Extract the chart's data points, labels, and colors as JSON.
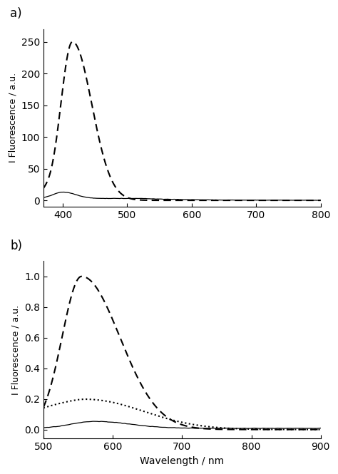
{
  "panel_a": {
    "label": "a)",
    "xlabel": "",
    "ylabel": "I Fluorescence / a.u.",
    "xlim": [
      370,
      800
    ],
    "ylim": [
      -10,
      270
    ],
    "yticks": [
      0,
      50,
      100,
      150,
      200,
      250
    ],
    "xticks": [
      400,
      500,
      600,
      700,
      800
    ]
  },
  "panel_b": {
    "label": "b)",
    "xlabel": "Wavelength / nm",
    "ylabel": "I Fluorescence / a.u.",
    "xlim": [
      500,
      900
    ],
    "ylim": [
      -0.06,
      1.1
    ],
    "yticks": [
      0.0,
      0.2,
      0.4,
      0.6,
      0.8,
      1.0
    ],
    "xticks": [
      500,
      600,
      700,
      800,
      900
    ]
  },
  "line_color": "#000000",
  "background_color": "#ffffff"
}
